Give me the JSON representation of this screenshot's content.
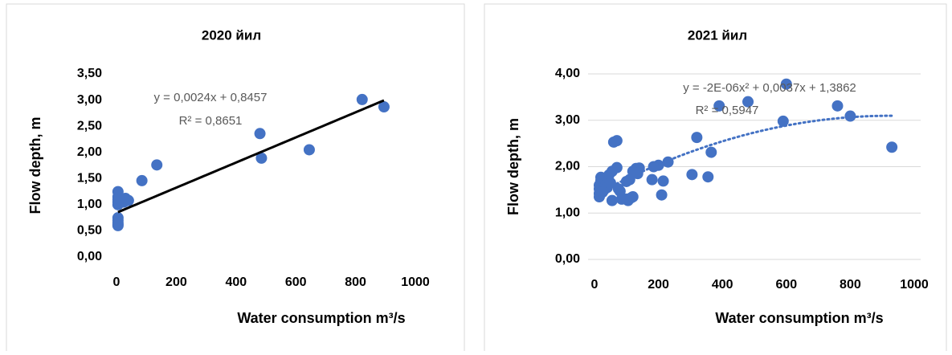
{
  "chart_data": [
    {
      "type": "scatter",
      "title": "2020 йил",
      "x_label": "Water consumption m³/s",
      "y_label": "Flow depth, m",
      "xlim": [
        0,
        1000
      ],
      "xticks": [
        0,
        200,
        400,
        600,
        800,
        1000
      ],
      "ylim": [
        0,
        3.5
      ],
      "yticks": [
        {
          "value": 0,
          "label": "0,00"
        },
        {
          "value": 0.5,
          "label": "0,50"
        },
        {
          "value": 1,
          "label": "1,00"
        },
        {
          "value": 1.5,
          "label": "1,50"
        },
        {
          "value": 2,
          "label": "2,00"
        },
        {
          "value": 2.5,
          "label": "2,50"
        },
        {
          "value": 3,
          "label": "3,00"
        },
        {
          "value": 3.5,
          "label": "3,50"
        }
      ],
      "grid": false,
      "color": "#4472c4",
      "x": [
        5,
        5,
        5,
        5,
        5,
        5,
        5,
        5,
        5,
        5,
        15,
        25,
        30,
        40,
        85,
        135,
        480,
        485,
        645,
        822,
        895
      ],
      "y": [
        1.25,
        1.15,
        1.1,
        1.05,
        1.0,
        0.75,
        0.7,
        0.65,
        0.6,
        0.62,
        1.1,
        1.05,
        1.12,
        1.08,
        1.46,
        1.76,
        2.36,
        1.89,
        2.05,
        3.01,
        2.87
      ],
      "trendline": {
        "type": "linear",
        "coefficients": [
          0.0024,
          0.8457
        ],
        "color": "#000000",
        "equation": "y = 0,0024x + 0,8457",
        "r_squared": "R² = 0,8651"
      }
    },
    {
      "type": "scatter",
      "title": "2021 йил",
      "x_label": "Water consumption m³/s",
      "y_label": "Flow depth, m",
      "xlim": [
        0,
        1000
      ],
      "xticks": [
        0,
        200,
        400,
        600,
        800,
        1000
      ],
      "ylim": [
        0,
        4
      ],
      "yticks": [
        {
          "value": 0,
          "label": "0,00"
        },
        {
          "value": 1,
          "label": "1,00"
        },
        {
          "value": 2,
          "label": "2,00"
        },
        {
          "value": 3,
          "label": "3,00"
        },
        {
          "value": 4,
          "label": "4,00"
        }
      ],
      "grid": true,
      "color": "#4472c4",
      "x": [
        600,
        480,
        390,
        760,
        800,
        590,
        930,
        320,
        365,
        230,
        200,
        185,
        305,
        355,
        180,
        215,
        210,
        60,
        70,
        70,
        130,
        140,
        120,
        135,
        110,
        100,
        115,
        100,
        105,
        85,
        75,
        80,
        55,
        55,
        45,
        20,
        20,
        15,
        15,
        15,
        15,
        30,
        35,
        40,
        25,
        50,
        120
      ],
      "y": [
        3.78,
        3.4,
        3.31,
        3.31,
        3.09,
        2.98,
        2.42,
        2.63,
        2.31,
        2.1,
        2.03,
        2.0,
        1.83,
        1.78,
        1.72,
        1.69,
        1.39,
        2.53,
        2.56,
        1.98,
        1.96,
        1.97,
        1.9,
        1.85,
        1.72,
        1.68,
        1.33,
        1.3,
        1.27,
        1.3,
        1.52,
        1.47,
        1.27,
        1.9,
        1.82,
        1.77,
        1.7,
        1.6,
        1.52,
        1.42,
        1.35,
        1.5,
        1.6,
        1.55,
        1.45,
        1.65,
        1.35
      ],
      "trendline": {
        "type": "polynomial",
        "coefficients": [
          -2e-06,
          0.0037,
          1.3862
        ],
        "color": "#4472c4",
        "equation": "y = -2E-06x² + 0,0037x + 1,3862",
        "r_squared": "R² = 0,5947"
      }
    }
  ]
}
